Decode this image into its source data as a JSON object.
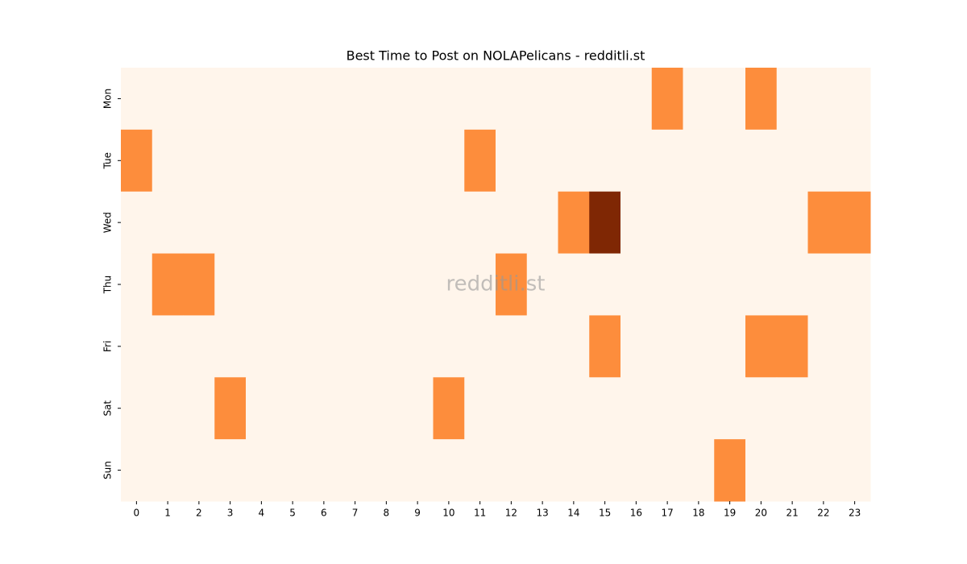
{
  "chart_data": {
    "type": "heatmap",
    "title": "Best Time to Post on NOLAPelicans - redditli.st",
    "watermark": "redditli.st",
    "x": [
      0,
      1,
      2,
      3,
      4,
      5,
      6,
      7,
      8,
      9,
      10,
      11,
      12,
      13,
      14,
      15,
      16,
      17,
      18,
      19,
      20,
      21,
      22,
      23
    ],
    "y": [
      "Mon",
      "Tue",
      "Wed",
      "Thu",
      "Fri",
      "Sat",
      "Sun"
    ],
    "values": [
      [
        0,
        0,
        0,
        0,
        0,
        0,
        0,
        0,
        0,
        0,
        0,
        0,
        0,
        0,
        0,
        0,
        0,
        1,
        0,
        0,
        1,
        0,
        0,
        0
      ],
      [
        1,
        0,
        0,
        0,
        0,
        0,
        0,
        0,
        0,
        0,
        0,
        1,
        0,
        0,
        0,
        0,
        0,
        0,
        0,
        0,
        0,
        0,
        0,
        0
      ],
      [
        0,
        0,
        0,
        0,
        0,
        0,
        0,
        0,
        0,
        0,
        0,
        0,
        0,
        0,
        1,
        2,
        0,
        0,
        0,
        0,
        0,
        0,
        1,
        1
      ],
      [
        0,
        1,
        1,
        0,
        0,
        0,
        0,
        0,
        0,
        0,
        0,
        0,
        1,
        0,
        0,
        0,
        0,
        0,
        0,
        0,
        0,
        0,
        0,
        0
      ],
      [
        0,
        0,
        0,
        0,
        0,
        0,
        0,
        0,
        0,
        0,
        0,
        0,
        0,
        0,
        0,
        1,
        0,
        0,
        0,
        0,
        1,
        1,
        0,
        0
      ],
      [
        0,
        0,
        0,
        1,
        0,
        0,
        0,
        0,
        0,
        0,
        1,
        0,
        0,
        0,
        0,
        0,
        0,
        0,
        0,
        0,
        0,
        0,
        0,
        0
      ],
      [
        0,
        0,
        0,
        0,
        0,
        0,
        0,
        0,
        0,
        0,
        0,
        0,
        0,
        0,
        0,
        0,
        0,
        0,
        0,
        1,
        0,
        0,
        0,
        0
      ]
    ],
    "zlim": [
      0,
      2
    ],
    "colormap": [
      "#fff5eb",
      "#fd8d3c",
      "#7f2704"
    ]
  }
}
